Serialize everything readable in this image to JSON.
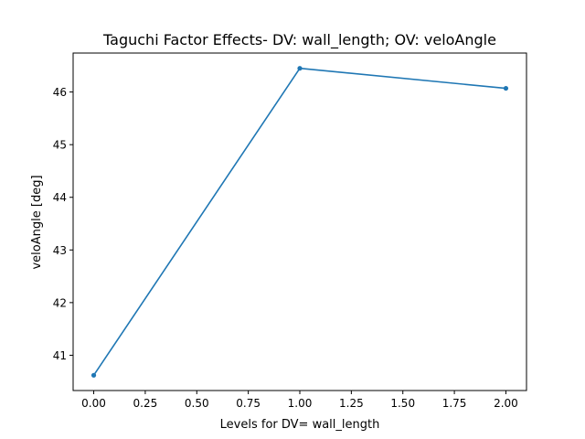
{
  "chart_data": {
    "type": "line",
    "title": "Taguchi Factor Effects- DV: wall_length; OV: veloAngle",
    "xlabel": "Levels for DV= wall_length",
    "ylabel": "veloAngle [deg]",
    "x": [
      0.0,
      1.0,
      2.0
    ],
    "series": [
      {
        "values": [
          40.62,
          46.45,
          46.07
        ],
        "color": "#1f77b4"
      }
    ],
    "xlim": [
      -0.1,
      2.1
    ],
    "ylim": [
      40.33,
      46.74
    ],
    "xticks": [
      0.0,
      0.25,
      0.5,
      0.75,
      1.0,
      1.25,
      1.5,
      1.75,
      2.0
    ],
    "xtick_labels": [
      "0.00",
      "0.25",
      "0.50",
      "0.75",
      "1.00",
      "1.25",
      "1.50",
      "1.75",
      "2.00"
    ],
    "yticks": [
      41,
      42,
      43,
      44,
      45,
      46
    ],
    "ytick_labels": [
      "41",
      "42",
      "43",
      "44",
      "45",
      "46"
    ],
    "grid": false,
    "marker": "circle"
  }
}
